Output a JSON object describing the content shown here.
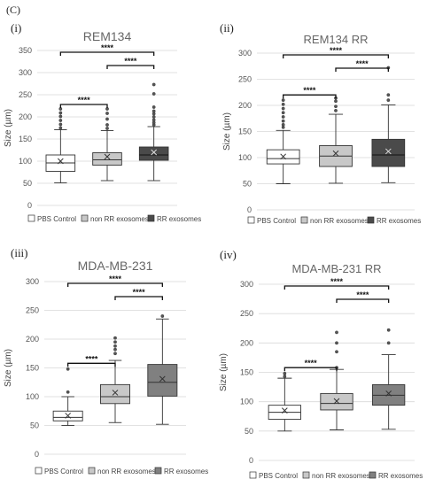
{
  "figure_label": "(C)",
  "chart_data": [
    {
      "type": "box",
      "panel": "(i)",
      "title": "REM134",
      "ylabel": "Size (µm)",
      "ylim": [
        0,
        350
      ],
      "yticks": [
        0,
        50,
        100,
        150,
        200,
        250,
        300,
        350
      ],
      "grid": true,
      "legend": "bottom",
      "series": [
        {
          "name": "PBS Control",
          "color": "#ffffff",
          "min": 51,
          "q1": 77,
          "median": 96,
          "q3": 114,
          "max": 171,
          "mean": 100,
          "outliers": [
            175,
            183,
            192,
            201,
            209,
            218
          ]
        },
        {
          "name": "non RR exosomes",
          "color": "#c8c8c8",
          "min": 56,
          "q1": 91,
          "median": 103,
          "q3": 119,
          "max": 169,
          "mean": 110,
          "outliers": [
            174,
            182,
            195,
            208,
            218
          ]
        },
        {
          "name": "RR exosomes",
          "color": "#4a4a4a",
          "min": 56,
          "q1": 102,
          "median": 114,
          "q3": 132,
          "max": 178,
          "mean": 120,
          "outliers": [
            182,
            187,
            193,
            200,
            207,
            213,
            222,
            252,
            273
          ]
        }
      ],
      "significance": [
        {
          "from": 0,
          "to": 1,
          "label": "****"
        },
        {
          "from": 1,
          "to": 2,
          "label": "****"
        },
        {
          "from": 0,
          "to": 2,
          "label": "****"
        }
      ]
    },
    {
      "type": "box",
      "panel": "(ii)",
      "title": "REM134 RR",
      "ylabel": "Size (µm)",
      "ylim": [
        0,
        300
      ],
      "yticks": [
        0,
        50,
        100,
        150,
        200,
        250,
        300
      ],
      "grid": true,
      "legend": "bottom",
      "series": [
        {
          "name": "PBS Control",
          "color": "#ffffff",
          "min": 50,
          "q1": 88,
          "median": 98,
          "q3": 115,
          "max": 152,
          "mean": 102,
          "outliers": [
            158,
            163,
            170,
            178,
            186,
            194,
            202,
            210
          ]
        },
        {
          "name": "non RR exosomes",
          "color": "#c8c8c8",
          "min": 51,
          "q1": 83,
          "median": 103,
          "q3": 123,
          "max": 183,
          "mean": 108,
          "outliers": [
            190,
            198,
            208,
            214
          ]
        },
        {
          "name": "RR exosomes",
          "color": "#4a4a4a",
          "min": 52,
          "q1": 83,
          "median": 105,
          "q3": 135,
          "max": 201,
          "mean": 112,
          "outliers": [
            210,
            220,
            272
          ]
        }
      ],
      "significance": [
        {
          "from": 0,
          "to": 1,
          "label": "****"
        },
        {
          "from": 1,
          "to": 2,
          "label": "****"
        },
        {
          "from": 0,
          "to": 2,
          "label": "****"
        }
      ]
    },
    {
      "type": "box",
      "panel": "(iii)",
      "title": "MDA-MB-231",
      "ylabel": "Size (µm)",
      "ylim": [
        0,
        300
      ],
      "yticks": [
        0,
        50,
        100,
        150,
        200,
        250,
        300
      ],
      "grid": true,
      "legend": "bottom",
      "series": [
        {
          "name": "PBS Control",
          "color": "#ffffff",
          "min": 50,
          "q1": 58,
          "median": 64,
          "q3": 75,
          "max": 100,
          "mean": 67,
          "outliers": [
            108,
            148
          ]
        },
        {
          "name": "non RR exosomes",
          "color": "#c8c8c8",
          "min": 55,
          "q1": 88,
          "median": 100,
          "q3": 121,
          "max": 163,
          "mean": 107,
          "outliers": [
            175,
            182,
            188,
            195,
            202
          ]
        },
        {
          "name": "RR exosomes",
          "color": "#808080",
          "min": 52,
          "q1": 101,
          "median": 125,
          "q3": 156,
          "max": 235,
          "mean": 131,
          "outliers": [
            240
          ]
        }
      ],
      "significance": [
        {
          "from": 0,
          "to": 1,
          "label": "****"
        },
        {
          "from": 1,
          "to": 2,
          "label": "****"
        },
        {
          "from": 0,
          "to": 2,
          "label": "****"
        }
      ]
    },
    {
      "type": "box",
      "panel": "(iv)",
      "title": "MDA-MB-231 RR",
      "ylabel": "Size (µm)",
      "ylim": [
        0,
        300
      ],
      "yticks": [
        0,
        50,
        100,
        150,
        200,
        250,
        300
      ],
      "grid": true,
      "legend": "bottom",
      "series": [
        {
          "name": "PBS Control",
          "color": "#ffffff",
          "min": 50,
          "q1": 70,
          "median": 82,
          "q3": 94,
          "max": 140,
          "mean": 85,
          "outliers": [
            143,
            148
          ]
        },
        {
          "name": "non RR exosomes",
          "color": "#c8c8c8",
          "min": 52,
          "q1": 86,
          "median": 97,
          "q3": 114,
          "max": 155,
          "mean": 101,
          "outliers": [
            158,
            185,
            200,
            218
          ]
        },
        {
          "name": "RR exosomes",
          "color": "#808080",
          "min": 53,
          "q1": 94,
          "median": 111,
          "q3": 129,
          "max": 180,
          "mean": 114,
          "outliers": [
            200,
            222
          ]
        }
      ],
      "significance": [
        {
          "from": 0,
          "to": 1,
          "label": "****"
        },
        {
          "from": 1,
          "to": 2,
          "label": "****"
        },
        {
          "from": 0,
          "to": 2,
          "label": "****"
        }
      ]
    }
  ]
}
